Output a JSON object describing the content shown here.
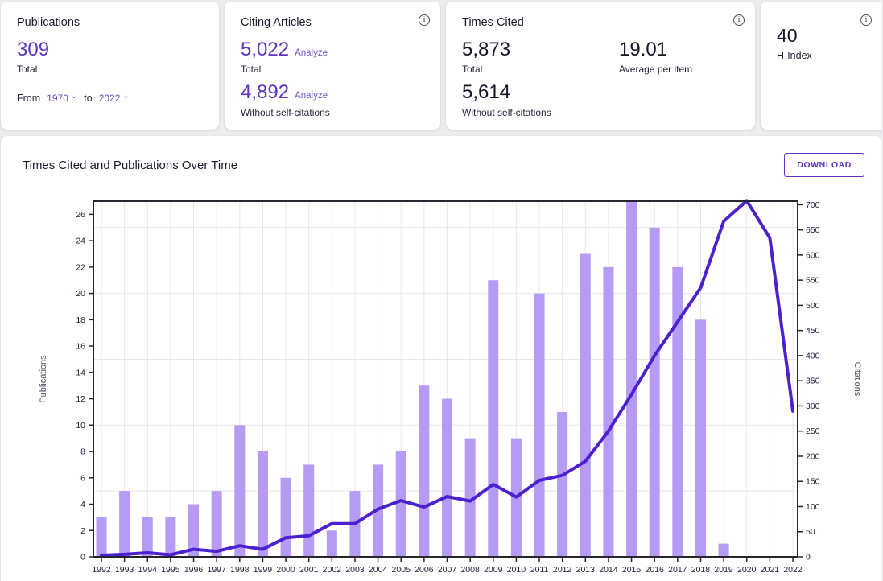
{
  "cards": {
    "publications": {
      "title": "Publications",
      "total_value": "309",
      "total_label": "Total",
      "from_label": "From",
      "from_year": "1970",
      "to_label": "to",
      "to_year": "2022"
    },
    "citing_articles": {
      "title": "Citing Articles",
      "total_value": "5,022",
      "total_analyze_label": "Analyze",
      "total_label": "Total",
      "without_value": "4,892",
      "without_analyze_label": "Analyze",
      "without_label": "Without self-citations"
    },
    "times_cited": {
      "title": "Times Cited",
      "total_value": "5,873",
      "total_label": "Total",
      "average_value": "19.01",
      "average_label": "Average per item",
      "without_value": "5,614",
      "without_label": "Without self-citations"
    },
    "h_index": {
      "value": "40",
      "label": "H-Index"
    }
  },
  "icons": {
    "info": "i",
    "chevron_down": "⌄"
  },
  "chart_section": {
    "title": "Times Cited and Publications Over Time",
    "download_label": "DOWNLOAD"
  },
  "colors": {
    "accent_purple": "#5e33bf",
    "bar_fill": "#b79af3",
    "line_stroke": "#4c20cf",
    "grid_line": "#e7e7ec",
    "plot_border": "#26262e",
    "tick_label": "#1c1c3a",
    "axis_title": "#4b4b63"
  },
  "chart_data": {
    "type": "bar",
    "subtype": "bar+line dual axis",
    "title": "Times Cited and Publications Over Time",
    "categories": [
      1992,
      1993,
      1994,
      1995,
      1996,
      1997,
      1998,
      1999,
      2000,
      2001,
      2002,
      2003,
      2004,
      2005,
      2006,
      2007,
      2008,
      2009,
      2010,
      2011,
      2012,
      2013,
      2014,
      2015,
      2016,
      2017,
      2018,
      2019,
      2020,
      2021,
      2022
    ],
    "series": [
      {
        "name": "Publications",
        "type": "bar",
        "axis": "left",
        "color": "#b79af3",
        "values": [
          3,
          5,
          3,
          3,
          4,
          5,
          10,
          8,
          6,
          7,
          2,
          5,
          7,
          8,
          13,
          12,
          9,
          21,
          9,
          20,
          11,
          23,
          22,
          27,
          25,
          22,
          18,
          1,
          0,
          0,
          0
        ]
      },
      {
        "name": "Citations",
        "type": "line",
        "axis": "right",
        "color": "#4c20cf",
        "values": [
          3,
          5,
          8,
          4,
          15,
          11,
          22,
          15,
          38,
          42,
          66,
          66,
          95,
          112,
          99,
          120,
          111,
          144,
          119,
          152,
          162,
          190,
          250,
          323,
          400,
          467,
          535,
          667,
          708,
          634,
          290
        ]
      }
    ],
    "left_axis": {
      "label": "Publications",
      "min": 0,
      "max": 27,
      "tick_step": 2,
      "tick_max": 26
    },
    "right_axis": {
      "label": "Citations",
      "min": 0,
      "max": 707,
      "tick_step": 50,
      "tick_max": 700
    },
    "grid": {
      "horizontal_step_left_units": 5,
      "vertical": "per-year"
    },
    "legend_position": "none"
  }
}
